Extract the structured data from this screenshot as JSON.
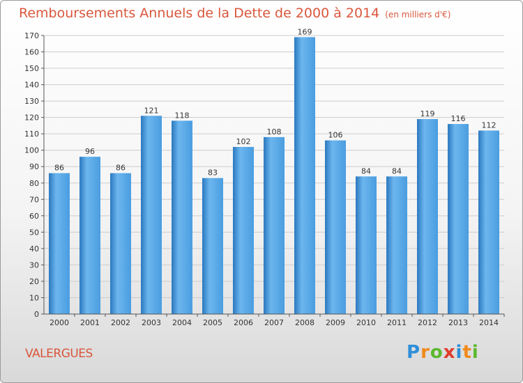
{
  "header": {
    "title": "Remboursements Annuels de la Dette de 2000 à 2014",
    "unit": "(en milliers d'€)"
  },
  "footer": {
    "city": "VALERGUES",
    "logo_letters": [
      "P",
      "r",
      "o",
      "x",
      "i",
      "t",
      "i"
    ],
    "logo_colors": [
      "#2f8fd8",
      "#f08a1c",
      "#5cb82e",
      "#e03c2c",
      "#2f8fd8",
      "#f08a1c",
      "#5cb82e"
    ]
  },
  "colors": {
    "bar": "#4a9de0",
    "bar_light": "#6cb6ee",
    "bar_dark": "#2a78bf",
    "grid": "#cccccc",
    "axis": "#555555",
    "title": "#d9573c"
  },
  "chart_data": {
    "type": "bar",
    "categories": [
      "2000",
      "2001",
      "2002",
      "2003",
      "2004",
      "2005",
      "2006",
      "2007",
      "2008",
      "2009",
      "2010",
      "2011",
      "2012",
      "2013",
      "2014"
    ],
    "values": [
      86,
      96,
      86,
      121,
      118,
      83,
      102,
      108,
      169,
      106,
      84,
      84,
      119,
      116,
      112
    ],
    "ylim": [
      0,
      170
    ],
    "yticks": [
      0,
      10,
      20,
      30,
      40,
      50,
      60,
      70,
      80,
      90,
      100,
      110,
      120,
      130,
      140,
      150,
      160,
      170
    ],
    "grid": true,
    "data_labels": true
  }
}
